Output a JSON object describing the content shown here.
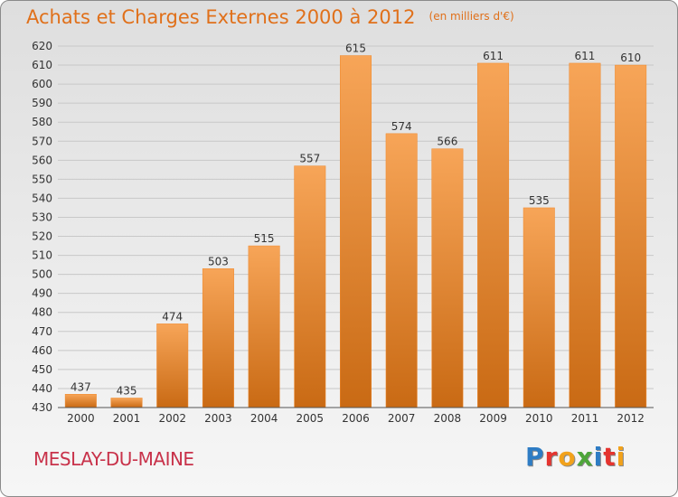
{
  "header": {
    "title": "Achats et Charges Externes 2000 à 2012",
    "unit": "(en milliers d'€)"
  },
  "footer": {
    "city": "MESLAY-DU-MAINE",
    "logo_letters": [
      "P",
      "r",
      "o",
      "x",
      "i",
      "t",
      "i"
    ]
  },
  "colors": {
    "bar": "#f0882a",
    "bar_light": "#f7a558",
    "bar_dark": "#c96a14",
    "title": "#e0701a",
    "city": "#c8324a",
    "logo": [
      "#2e7cc4",
      "#e5342f",
      "#f2a21b",
      "#4ea53a",
      "#2e7cc4",
      "#e5342f",
      "#f2a21b"
    ]
  },
  "chart_data": {
    "type": "bar",
    "title": "Achats et Charges Externes 2000 à 2012",
    "subtitle": "(en milliers d'€)",
    "categories": [
      "2000",
      "2001",
      "2002",
      "2003",
      "2004",
      "2005",
      "2006",
      "2007",
      "2008",
      "2009",
      "2010",
      "2011",
      "2012"
    ],
    "values": [
      437,
      435,
      474,
      503,
      515,
      557,
      615,
      574,
      566,
      611,
      535,
      611,
      610
    ],
    "ylim": [
      430,
      620
    ],
    "yticks": [
      430,
      440,
      450,
      460,
      470,
      480,
      490,
      500,
      510,
      520,
      530,
      540,
      550,
      560,
      570,
      580,
      590,
      600,
      610,
      620
    ],
    "grid": true,
    "legend": "none"
  }
}
